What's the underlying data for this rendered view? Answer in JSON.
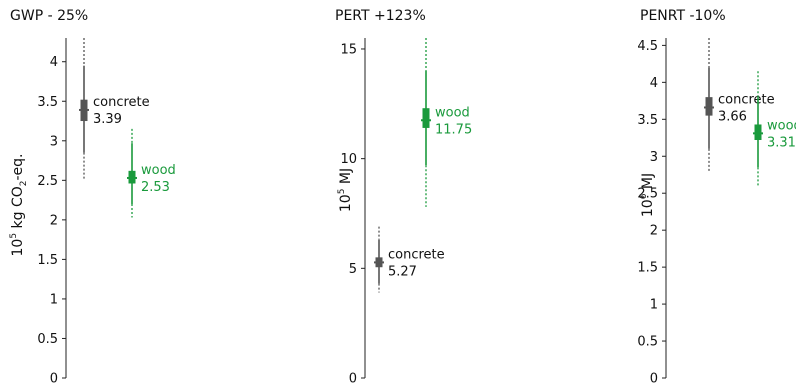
{
  "chart_data": [
    {
      "type": "box",
      "title": "GWP - 25%",
      "ylabel": {
        "base": "10",
        "exp": "5",
        "unit_before_sub": "kg CO",
        "sub": "2",
        "unit_after_sub": "-eq."
      },
      "ylim": [
        0,
        4.3
      ],
      "yticks": [
        "0",
        "0.5",
        "1",
        "1.5",
        "2",
        "2.5",
        "3",
        "3.5",
        "4"
      ],
      "series": [
        {
          "name": "concrete",
          "value": "3.39",
          "median": 3.39,
          "q1": 3.25,
          "q3": 3.52,
          "p5": 2.85,
          "p95": 3.95,
          "min": 2.5,
          "max": 4.3,
          "color": "#555555"
        },
        {
          "name": "wood",
          "value": "2.53",
          "median": 2.53,
          "q1": 2.46,
          "q3": 2.62,
          "p5": 2.2,
          "p95": 2.97,
          "min": 2.03,
          "max": 3.15,
          "color": "#1a9a3c"
        }
      ]
    },
    {
      "type": "box",
      "title": "PERT +123%",
      "ylabel": {
        "base": "10",
        "exp": "5",
        "unit_before_sub": "MJ",
        "sub": "",
        "unit_after_sub": ""
      },
      "ylim": [
        0,
        15.5
      ],
      "yticks": [
        "0",
        "5",
        "10",
        "15"
      ],
      "series": [
        {
          "name": "concrete",
          "value": "5.27",
          "median": 5.27,
          "q1": 5.05,
          "q3": 5.5,
          "p5": 4.3,
          "p95": 6.3,
          "min": 3.9,
          "max": 6.9,
          "color": "#555555"
        },
        {
          "name": "wood",
          "value": "11.75",
          "median": 11.75,
          "q1": 11.4,
          "q3": 12.3,
          "p5": 9.7,
          "p95": 14.0,
          "min": 7.8,
          "max": 15.5,
          "color": "#1a9a3c"
        }
      ]
    },
    {
      "type": "box",
      "title": "PENRT -10%",
      "ylabel": {
        "base": "10",
        "exp": "6",
        "unit_before_sub": "MJ",
        "sub": "",
        "unit_after_sub": ""
      },
      "ylim": [
        0,
        4.6
      ],
      "yticks": [
        "0",
        "0.5",
        "1",
        "1.5",
        "2",
        "2.5",
        "3",
        "3.5",
        "4",
        "4.5"
      ],
      "series": [
        {
          "name": "concrete",
          "value": "3.66",
          "median": 3.66,
          "q1": 3.55,
          "q3": 3.8,
          "p5": 3.1,
          "p95": 4.2,
          "min": 2.78,
          "max": 4.6,
          "color": "#555555"
        },
        {
          "name": "wood",
          "value": "3.31",
          "median": 3.31,
          "q1": 3.22,
          "q3": 3.43,
          "p5": 2.85,
          "p95": 3.8,
          "min": 2.6,
          "max": 4.15,
          "color": "#1a9a3c"
        }
      ]
    }
  ]
}
